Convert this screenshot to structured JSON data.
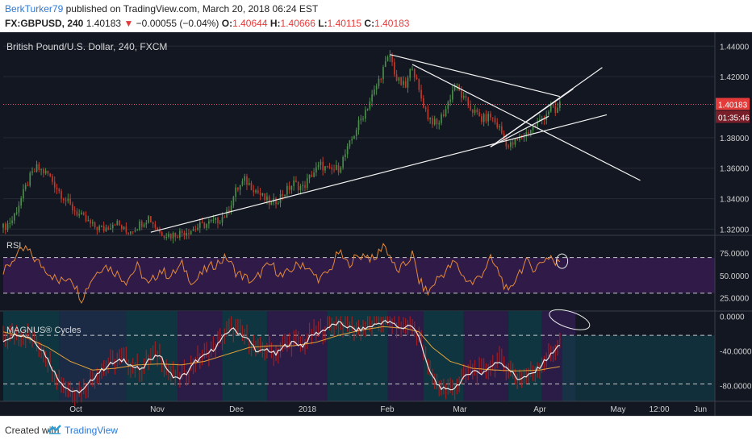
{
  "header": {
    "author": "BerkTurker79",
    "published_text": "published on TradingView.com, March 20, 2018 06:24 EST",
    "symbol": "FX:GBPUSD, 240",
    "price": "1.40183",
    "arrow": "▼",
    "change": "−0.00055 (−0.04%)",
    "o_label": "O:",
    "o": "1.40644",
    "h_label": "H:",
    "h": "1.40666",
    "l_label": "L:",
    "l": "1.40115",
    "c_label": "C:",
    "c": "1.40183"
  },
  "footer": {
    "created_with": "Created with",
    "brand": "TradingView"
  },
  "colors": {
    "background": "#131722",
    "up_candle": "#4b8d4b",
    "down_candle": "#c0392b",
    "rsi_line": "#e3893a",
    "rsi_band": "#3b1d56",
    "price_line": "#e05a6d",
    "cycles_white": "#e8e8e8",
    "cycles_orange": "#e0a03a",
    "cycles_red": "#b71c1c"
  },
  "chart_data": [
    {
      "type": "candlestick",
      "title": "British Pound/U.S. Dollar, 240, FXCM",
      "y_ticks": [
        "1.44000",
        "1.42000",
        "1.40183",
        "1.38000",
        "1.36000",
        "1.34000",
        "1.32000"
      ],
      "y_tick_values": [
        1.44,
        1.42,
        1.38,
        1.36,
        1.34,
        1.32
      ],
      "ylim": [
        1.316,
        1.447
      ],
      "current_price": "1.40183",
      "countdown": "01:35:46",
      "x_ticks": [
        "Oct",
        "Nov",
        "Dec",
        "2018",
        "Feb",
        "Mar",
        "Apr",
        "May",
        "12:00",
        "Jun"
      ],
      "close_path": [
        [
          0,
          1.321
        ],
        [
          4,
          1.326
        ],
        [
          8,
          1.34
        ],
        [
          12,
          1.354
        ],
        [
          15,
          1.36
        ],
        [
          20,
          1.356
        ],
        [
          25,
          1.345
        ],
        [
          30,
          1.335
        ],
        [
          35,
          1.328
        ],
        [
          40,
          1.322
        ],
        [
          45,
          1.32
        ],
        [
          50,
          1.325
        ],
        [
          55,
          1.318
        ],
        [
          60,
          1.322
        ],
        [
          65,
          1.328
        ],
        [
          70,
          1.318
        ],
        [
          75,
          1.316
        ],
        [
          80,
          1.318
        ],
        [
          85,
          1.32
        ],
        [
          90,
          1.323
        ],
        [
          95,
          1.325
        ],
        [
          100,
          1.33
        ],
        [
          104,
          1.345
        ],
        [
          108,
          1.352
        ],
        [
          112,
          1.347
        ],
        [
          116,
          1.341
        ],
        [
          120,
          1.336
        ],
        [
          125,
          1.343
        ],
        [
          130,
          1.35
        ],
        [
          134,
          1.347
        ],
        [
          138,
          1.356
        ],
        [
          142,
          1.362
        ],
        [
          146,
          1.358
        ],
        [
          150,
          1.36
        ],
        [
          154,
          1.372
        ],
        [
          158,
          1.386
        ],
        [
          162,
          1.398
        ],
        [
          166,
          1.41
        ],
        [
          170,
          1.425
        ],
        [
          173,
          1.434
        ],
        [
          176,
          1.418
        ],
        [
          180,
          1.413
        ],
        [
          183,
          1.428
        ],
        [
          186,
          1.41
        ],
        [
          190,
          1.394
        ],
        [
          194,
          1.388
        ],
        [
          198,
          1.399
        ],
        [
          202,
          1.415
        ],
        [
          206,
          1.405
        ],
        [
          210,
          1.398
        ],
        [
          214,
          1.392
        ],
        [
          218,
          1.394
        ],
        [
          222,
          1.386
        ],
        [
          226,
          1.374
        ],
        [
          230,
          1.378
        ],
        [
          234,
          1.383
        ],
        [
          238,
          1.388
        ],
        [
          242,
          1.394
        ],
        [
          245,
          1.4
        ],
        [
          247,
          1.396
        ],
        [
          249,
          1.402
        ]
      ],
      "trendlines": "support / resistance lines drawn in white"
    },
    {
      "type": "line",
      "title": "RSI",
      "y_ticks": [
        "75.0000",
        "50.0000",
        "25.0000"
      ],
      "y_tick_values": [
        75,
        50,
        25
      ],
      "ylim": [
        10,
        95
      ],
      "bands": [
        30,
        70
      ],
      "values_path": [
        [
          0,
          52
        ],
        [
          5,
          70
        ],
        [
          10,
          80
        ],
        [
          15,
          66
        ],
        [
          20,
          55
        ],
        [
          25,
          42
        ],
        [
          30,
          50
        ],
        [
          35,
          24
        ],
        [
          40,
          48
        ],
        [
          45,
          62
        ],
        [
          50,
          54
        ],
        [
          55,
          44
        ],
        [
          60,
          60
        ],
        [
          65,
          38
        ],
        [
          70,
          56
        ],
        [
          75,
          49
        ],
        [
          80,
          62
        ],
        [
          85,
          41
        ],
        [
          90,
          55
        ],
        [
          95,
          63
        ],
        [
          100,
          70
        ],
        [
          104,
          54
        ],
        [
          108,
          48
        ],
        [
          112,
          42
        ],
        [
          116,
          56
        ],
        [
          120,
          62
        ],
        [
          125,
          48
        ],
        [
          130,
          59
        ],
        [
          134,
          64
        ],
        [
          138,
          52
        ],
        [
          142,
          46
        ],
        [
          146,
          55
        ],
        [
          150,
          76
        ],
        [
          154,
          63
        ],
        [
          158,
          70
        ],
        [
          162,
          74
        ],
        [
          166,
          66
        ],
        [
          170,
          86
        ],
        [
          173,
          72
        ],
        [
          176,
          54
        ],
        [
          180,
          62
        ],
        [
          183,
          74
        ],
        [
          186,
          44
        ],
        [
          190,
          30
        ],
        [
          194,
          46
        ],
        [
          198,
          55
        ],
        [
          202,
          65
        ],
        [
          206,
          48
        ],
        [
          210,
          41
        ],
        [
          214,
          52
        ],
        [
          218,
          68
        ],
        [
          222,
          52
        ],
        [
          226,
          28
        ],
        [
          230,
          52
        ],
        [
          234,
          64
        ],
        [
          238,
          58
        ],
        [
          242,
          68
        ],
        [
          245,
          72
        ],
        [
          247,
          62
        ],
        [
          249,
          66
        ]
      ]
    },
    {
      "type": "line",
      "title": "MAGNUS® Cycles",
      "y_ticks": [
        "0.0000",
        "-40.0000",
        "-80.0000"
      ],
      "y_tick_values": [
        0,
        -40,
        -80
      ],
      "ylim": [
        -98,
        6
      ],
      "white_path": [
        [
          0,
          -28
        ],
        [
          6,
          -20
        ],
        [
          12,
          -24
        ],
        [
          18,
          -40
        ],
        [
          24,
          -70
        ],
        [
          28,
          -82
        ],
        [
          32,
          -88
        ],
        [
          36,
          -85
        ],
        [
          42,
          -66
        ],
        [
          48,
          -55
        ],
        [
          54,
          -50
        ],
        [
          58,
          -58
        ],
        [
          62,
          -62
        ],
        [
          66,
          -48
        ],
        [
          70,
          -44
        ],
        [
          74,
          -65
        ],
        [
          78,
          -72
        ],
        [
          82,
          -66
        ],
        [
          86,
          -52
        ],
        [
          90,
          -46
        ],
        [
          94,
          -38
        ],
        [
          98,
          -26
        ],
        [
          102,
          -14
        ],
        [
          106,
          -20
        ],
        [
          110,
          -28
        ],
        [
          114,
          -42
        ],
        [
          118,
          -38
        ],
        [
          122,
          -44
        ],
        [
          126,
          -34
        ],
        [
          130,
          -30
        ],
        [
          134,
          -34
        ],
        [
          138,
          -22
        ],
        [
          142,
          -18
        ],
        [
          146,
          -12
        ],
        [
          150,
          -8
        ],
        [
          154,
          -12
        ],
        [
          158,
          -16
        ],
        [
          162,
          -14
        ],
        [
          166,
          -10
        ],
        [
          170,
          -6
        ],
        [
          174,
          -8
        ],
        [
          178,
          -14
        ],
        [
          182,
          -10
        ],
        [
          186,
          -22
        ],
        [
          190,
          -60
        ],
        [
          194,
          -78
        ],
        [
          198,
          -86
        ],
        [
          202,
          -82
        ],
        [
          206,
          -72
        ],
        [
          210,
          -62
        ],
        [
          214,
          -66
        ],
        [
          218,
          -58
        ],
        [
          222,
          -52
        ],
        [
          226,
          -60
        ],
        [
          230,
          -72
        ],
        [
          234,
          -70
        ],
        [
          238,
          -64
        ],
        [
          242,
          -52
        ],
        [
          246,
          -42
        ],
        [
          249,
          -32
        ]
      ],
      "orange_path": [
        [
          0,
          -18
        ],
        [
          10,
          -24
        ],
        [
          20,
          -36
        ],
        [
          30,
          -52
        ],
        [
          40,
          -62
        ],
        [
          50,
          -60
        ],
        [
          60,
          -56
        ],
        [
          70,
          -55
        ],
        [
          80,
          -56
        ],
        [
          90,
          -52
        ],
        [
          100,
          -44
        ],
        [
          110,
          -36
        ],
        [
          120,
          -34
        ],
        [
          130,
          -34
        ],
        [
          140,
          -30
        ],
        [
          150,
          -22
        ],
        [
          160,
          -16
        ],
        [
          170,
          -12
        ],
        [
          180,
          -14
        ],
        [
          186,
          -18
        ],
        [
          192,
          -36
        ],
        [
          200,
          -52
        ],
        [
          210,
          -60
        ],
        [
          220,
          -62
        ],
        [
          230,
          -63
        ],
        [
          240,
          -62
        ],
        [
          249,
          -58
        ]
      ]
    }
  ]
}
